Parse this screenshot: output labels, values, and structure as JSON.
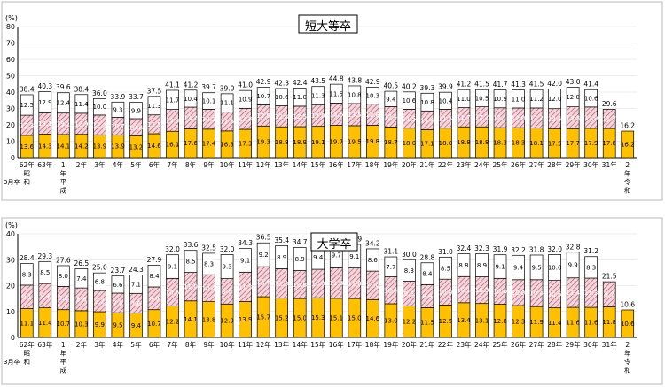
{
  "colors": {
    "bottom": "#ffc000",
    "middle": "#f3d5db",
    "middle_hatch": "#b04a63",
    "top": "#ffffff",
    "outline": "#000000"
  },
  "x_note": "3月卒",
  "chart_data": [
    {
      "type": "bar",
      "title": "短大等卒",
      "ylabel": "(%)",
      "ylim": [
        0,
        80
      ],
      "yticks": [
        "0",
        "10",
        "20",
        "30",
        "40",
        "50",
        "60",
        "70",
        "80"
      ],
      "grid": true,
      "categories": [
        [
          "62年",
          "昭",
          "和"
        ],
        [
          "63年"
        ],
        [
          "1",
          "年",
          "平",
          "成"
        ],
        [
          "2年"
        ],
        [
          "3年"
        ],
        [
          "4年"
        ],
        [
          "5年"
        ],
        [
          "6年"
        ],
        [
          "7年"
        ],
        [
          "8年"
        ],
        [
          "9年"
        ],
        [
          "10年"
        ],
        [
          "11年"
        ],
        [
          "12年"
        ],
        [
          "13年"
        ],
        [
          "14年"
        ],
        [
          "15年"
        ],
        [
          "16年"
        ],
        [
          "17年"
        ],
        [
          "18年"
        ],
        [
          "19年"
        ],
        [
          "20年"
        ],
        [
          "21年"
        ],
        [
          "22年"
        ],
        [
          "23年"
        ],
        [
          "24年"
        ],
        [
          "25年"
        ],
        [
          "26年"
        ],
        [
          "27年"
        ],
        [
          "28年"
        ],
        [
          "29年"
        ],
        [
          "30年"
        ],
        [
          "31年"
        ],
        [
          "2",
          "年",
          "令",
          "和"
        ]
      ],
      "series": [
        {
          "values": [
            13.6,
            14.3,
            14.1,
            14.2,
            13.9,
            13.9,
            13.2,
            14.6,
            16.1,
            17.6,
            17.4,
            16.3,
            17.3,
            19.3,
            18.8,
            18.9,
            19.1,
            19.7,
            19.5,
            19.8,
            18.7,
            18.0,
            17.1,
            18.0,
            18.8,
            18.8,
            18.3,
            18.3,
            18.1,
            17.5,
            17.7,
            17.9,
            17.8,
            16.2
          ]
        },
        {
          "values": [
            12.3,
            13.1,
            13.1,
            12.9,
            12.1,
            10.7,
            10.6,
            11.5,
            13.3,
            13.2,
            12.1,
            11.6,
            12.8,
            12.9,
            12.8,
            12.5,
            13.0,
            13.6,
            13.5,
            12.8,
            12.4,
            11.5,
            11.4,
            11.5,
            11.7,
            12.2,
            12.1,
            12.0,
            12.2,
            12.4,
            13.3,
            13.0,
            11.7,
            null
          ]
        },
        {
          "values": [
            12.5,
            12.9,
            12.4,
            11.4,
            10.0,
            9.3,
            9.9,
            11.3,
            11.7,
            10.4,
            10.1,
            11.1,
            10.9,
            10.7,
            10.6,
            11.0,
            11.3,
            11.5,
            10.8,
            10.3,
            9.4,
            10.6,
            10.8,
            10.4,
            11.0,
            10.5,
            10.9,
            11.0,
            11.2,
            12.0,
            12.0,
            10.6,
            null,
            null
          ]
        }
      ],
      "totals": [
        38.4,
        40.3,
        39.6,
        38.4,
        36.0,
        33.9,
        33.7,
        37.5,
        41.1,
        41.2,
        39.7,
        39.0,
        41.0,
        42.9,
        42.3,
        42.4,
        43.5,
        44.8,
        43.8,
        42.9,
        40.5,
        40.2,
        39.3,
        39.9,
        41.2,
        41.5,
        41.7,
        41.3,
        41.5,
        42.0,
        43.0,
        41.4,
        29.6,
        16.2
      ]
    },
    {
      "type": "bar",
      "title": "大学卒",
      "ylabel": "(%)",
      "ylim": [
        0,
        40
      ],
      "yticks": [
        "0",
        "10",
        "20",
        "30",
        "40"
      ],
      "grid": true,
      "categories": [
        [
          "62年",
          "昭",
          "和"
        ],
        [
          "63年"
        ],
        [
          "1",
          "年",
          "平",
          "成"
        ],
        [
          "2年"
        ],
        [
          "3年"
        ],
        [
          "4年"
        ],
        [
          "5年"
        ],
        [
          "6年"
        ],
        [
          "7年"
        ],
        [
          "8年"
        ],
        [
          "9年"
        ],
        [
          "10年"
        ],
        [
          "11年"
        ],
        [
          "12年"
        ],
        [
          "13年"
        ],
        [
          "14年"
        ],
        [
          "15年"
        ],
        [
          "16年"
        ],
        [
          "17年"
        ],
        [
          "18年"
        ],
        [
          "19年"
        ],
        [
          "20年"
        ],
        [
          "21年"
        ],
        [
          "22年"
        ],
        [
          "23年"
        ],
        [
          "24年"
        ],
        [
          "25年"
        ],
        [
          "26年"
        ],
        [
          "27年"
        ],
        [
          "28年"
        ],
        [
          "29年"
        ],
        [
          "30年"
        ],
        [
          "31年"
        ],
        [
          "2",
          "年",
          "令",
          "和"
        ]
      ],
      "series": [
        {
          "values": [
            11.1,
            11.4,
            10.7,
            10.3,
            9.9,
            9.5,
            9.4,
            10.7,
            12.2,
            14.1,
            13.8,
            12.9,
            13.9,
            15.7,
            15.2,
            15.0,
            15.3,
            15.1,
            15.0,
            14.6,
            13.0,
            12.2,
            11.5,
            12.5,
            13.4,
            13.1,
            12.8,
            12.3,
            11.9,
            11.4,
            11.6,
            11.6,
            11.8,
            10.6
          ]
        },
        {
          "values": [
            9.1,
            9.4,
            9.0,
            8.8,
            8.2,
            7.6,
            7.6,
            8.8,
            10.6,
            11.0,
            10.4,
            9.8,
            11.3,
            11.6,
            11.3,
            10.8,
            11.0,
            11.8,
            11.8,
            11.0,
            10.4,
            9.5,
            8.9,
            10.0,
            10.1,
            10.3,
            10.0,
            10.0,
            10.4,
            10.6,
            11.4,
            11.3,
            9.7,
            null
          ]
        },
        {
          "values": [
            8.3,
            8.5,
            8.0,
            7.4,
            6.8,
            6.6,
            7.1,
            8.4,
            9.1,
            8.5,
            8.3,
            9.3,
            9.1,
            9.2,
            8.9,
            8.9,
            9.4,
            9.7,
            9.1,
            8.6,
            7.7,
            8.3,
            8.4,
            8.5,
            8.8,
            8.9,
            9.1,
            9.4,
            9.5,
            10.0,
            9.9,
            8.3,
            null,
            null
          ]
        }
      ],
      "totals": [
        28.4,
        29.3,
        27.6,
        26.5,
        25.0,
        23.7,
        24.3,
        27.9,
        32.0,
        33.6,
        32.5,
        32.0,
        34.3,
        36.5,
        35.4,
        34.7,
        35.8,
        36.6,
        35.9,
        34.2,
        31.1,
        30.0,
        28.8,
        31.0,
        32.4,
        32.3,
        31.9,
        32.2,
        31.8,
        32.0,
        32.8,
        31.2,
        21.5,
        10.6
      ]
    }
  ]
}
